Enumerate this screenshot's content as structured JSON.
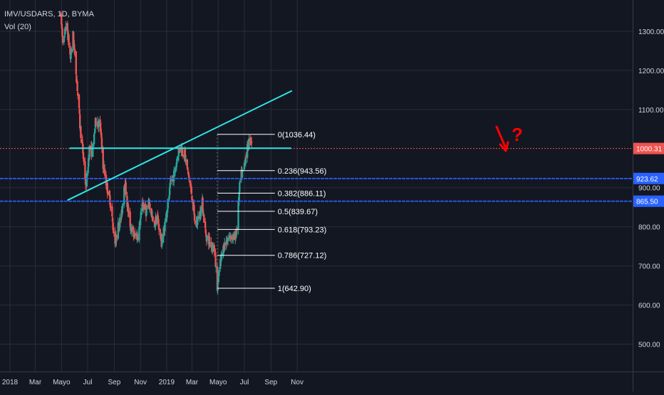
{
  "legend": {
    "symbol_line": "IMV/USDARS, 1D, BYMA",
    "volume_line": "Vol (20)"
  },
  "chart_data": {
    "type": "candlestick",
    "symbol": "IMV/USDARS",
    "interval": "1D",
    "exchange": "BYMA",
    "ylim": [
      430,
      1380
    ],
    "y_ticks": [
      {
        "value": 1300,
        "label": "1300.00"
      },
      {
        "value": 1200,
        "label": "1200.00"
      },
      {
        "value": 1100,
        "label": "1100.00"
      },
      {
        "value": 900,
        "label": "900.00"
      },
      {
        "value": 800,
        "label": "800.00"
      },
      {
        "value": 700,
        "label": "700.00"
      },
      {
        "value": 600,
        "label": "600.00"
      },
      {
        "value": 500,
        "label": "500.00"
      }
    ],
    "x_ticks": [
      {
        "label": "2018",
        "date": "2018-01-01"
      },
      {
        "label": "Mar",
        "date": "2018-03-01"
      },
      {
        "label": "Mayo",
        "date": "2018-05-01"
      },
      {
        "label": "Jul",
        "date": "2018-07-01"
      },
      {
        "label": "Sep",
        "date": "2018-09-01"
      },
      {
        "label": "Nov",
        "date": "2018-11-01"
      },
      {
        "label": "2019",
        "date": "2019-01-01"
      },
      {
        "label": "Mar",
        "date": "2019-03-01"
      },
      {
        "label": "Mayo",
        "date": "2019-05-01"
      },
      {
        "label": "Jul",
        "date": "2019-07-01"
      },
      {
        "label": "Sep",
        "date": "2019-09-01"
      },
      {
        "label": "Nov",
        "date": "2019-11-01"
      }
    ],
    "price_anchors": [
      [
        "2018-04-28",
        1350
      ],
      [
        "2018-05-06",
        1260
      ],
      [
        "2018-05-12",
        1330
      ],
      [
        "2018-05-22",
        1230
      ],
      [
        "2018-05-28",
        1290
      ],
      [
        "2018-06-06",
        1170
      ],
      [
        "2018-06-13",
        1060
      ],
      [
        "2018-06-20",
        990
      ],
      [
        "2018-06-27",
        900
      ],
      [
        "2018-07-05",
        1000
      ],
      [
        "2018-07-12",
        990
      ],
      [
        "2018-07-20",
        1075
      ],
      [
        "2018-07-30",
        1060
      ],
      [
        "2018-08-06",
        960
      ],
      [
        "2018-08-14",
        905
      ],
      [
        "2018-08-22",
        870
      ],
      [
        "2018-08-29",
        800
      ],
      [
        "2018-09-04",
        760
      ],
      [
        "2018-09-10",
        800
      ],
      [
        "2018-09-18",
        830
      ],
      [
        "2018-09-25",
        920
      ],
      [
        "2018-10-02",
        850
      ],
      [
        "2018-10-09",
        800
      ],
      [
        "2018-10-17",
        775
      ],
      [
        "2018-10-27",
        780
      ],
      [
        "2018-11-06",
        860
      ],
      [
        "2018-11-14",
        840
      ],
      [
        "2018-11-22",
        860
      ],
      [
        "2018-12-02",
        800
      ],
      [
        "2018-12-10",
        830
      ],
      [
        "2018-12-20",
        760
      ],
      [
        "2018-12-27",
        800
      ],
      [
        "2019-01-04",
        860
      ],
      [
        "2019-01-12",
        920
      ],
      [
        "2019-01-20",
        935
      ],
      [
        "2019-01-27",
        990
      ],
      [
        "2019-02-03",
        1005
      ],
      [
        "2019-02-12",
        985
      ],
      [
        "2019-02-21",
        930
      ],
      [
        "2019-03-01",
        880
      ],
      [
        "2019-03-09",
        800
      ],
      [
        "2019-03-17",
        825
      ],
      [
        "2019-03-25",
        860
      ],
      [
        "2019-04-02",
        780
      ],
      [
        "2019-04-12",
        760
      ],
      [
        "2019-04-22",
        745
      ],
      [
        "2019-04-29",
        650
      ],
      [
        "2019-05-05",
        700
      ],
      [
        "2019-05-14",
        750
      ],
      [
        "2019-05-24",
        770
      ],
      [
        "2019-06-01",
        780
      ],
      [
        "2019-06-08",
        765
      ],
      [
        "2019-06-14",
        800
      ],
      [
        "2019-06-18",
        870
      ],
      [
        "2019-06-22",
        930
      ],
      [
        "2019-06-27",
        935
      ],
      [
        "2019-07-03",
        975
      ],
      [
        "2019-07-09",
        1005
      ],
      [
        "2019-07-15",
        1030
      ],
      [
        "2019-07-18",
        1020
      ]
    ],
    "levels": [
      {
        "name": "resistance",
        "value": 1000.31,
        "label": "1000.31",
        "color": "#ef5350"
      },
      {
        "name": "level-923",
        "value": 923.62,
        "label": "923.62",
        "color": "#2962ff"
      },
      {
        "name": "level-865",
        "value": 865.5,
        "label": "865.50",
        "color": "#2962ff"
      }
    ],
    "fib_levels": [
      {
        "ratio": "0",
        "value": 1036.44,
        "label": "0(1036.44)"
      },
      {
        "ratio": "0.236",
        "value": 943.56,
        "label": "0.236(943.56)"
      },
      {
        "ratio": "0.382",
        "value": 886.11,
        "label": "0.382(886.11)"
      },
      {
        "ratio": "0.5",
        "value": 839.67,
        "label": "0.5(839.67)"
      },
      {
        "ratio": "0.618",
        "value": 793.23,
        "label": "0.618(793.23)"
      },
      {
        "ratio": "0.786",
        "value": 727.12,
        "label": "0.786(727.12)"
      },
      {
        "ratio": "1",
        "value": 642.9,
        "label": "1(642.90)"
      }
    ],
    "fib_start_date": "2019-04-29",
    "fib_end_date": "2019-09-10",
    "trendlines": [
      {
        "name": "rising-trendline",
        "from": [
          "2018-05-15",
          868
        ],
        "to": [
          "2019-10-20",
          1148
        ]
      },
      {
        "name": "horizontal-resistance-line",
        "from": [
          "2018-05-20",
          1001
        ],
        "to": [
          "2019-10-18",
          1001
        ]
      }
    ],
    "annotation": {
      "text": "?",
      "color": "#ff0000"
    },
    "colors": {
      "background": "#131722",
      "grid": "#2a2e39",
      "up": "#26a69a",
      "down": "#ef5350",
      "trendline": "#2ee6e6",
      "fib": "#ffffff",
      "axis_text": "#d1d4dc"
    }
  }
}
